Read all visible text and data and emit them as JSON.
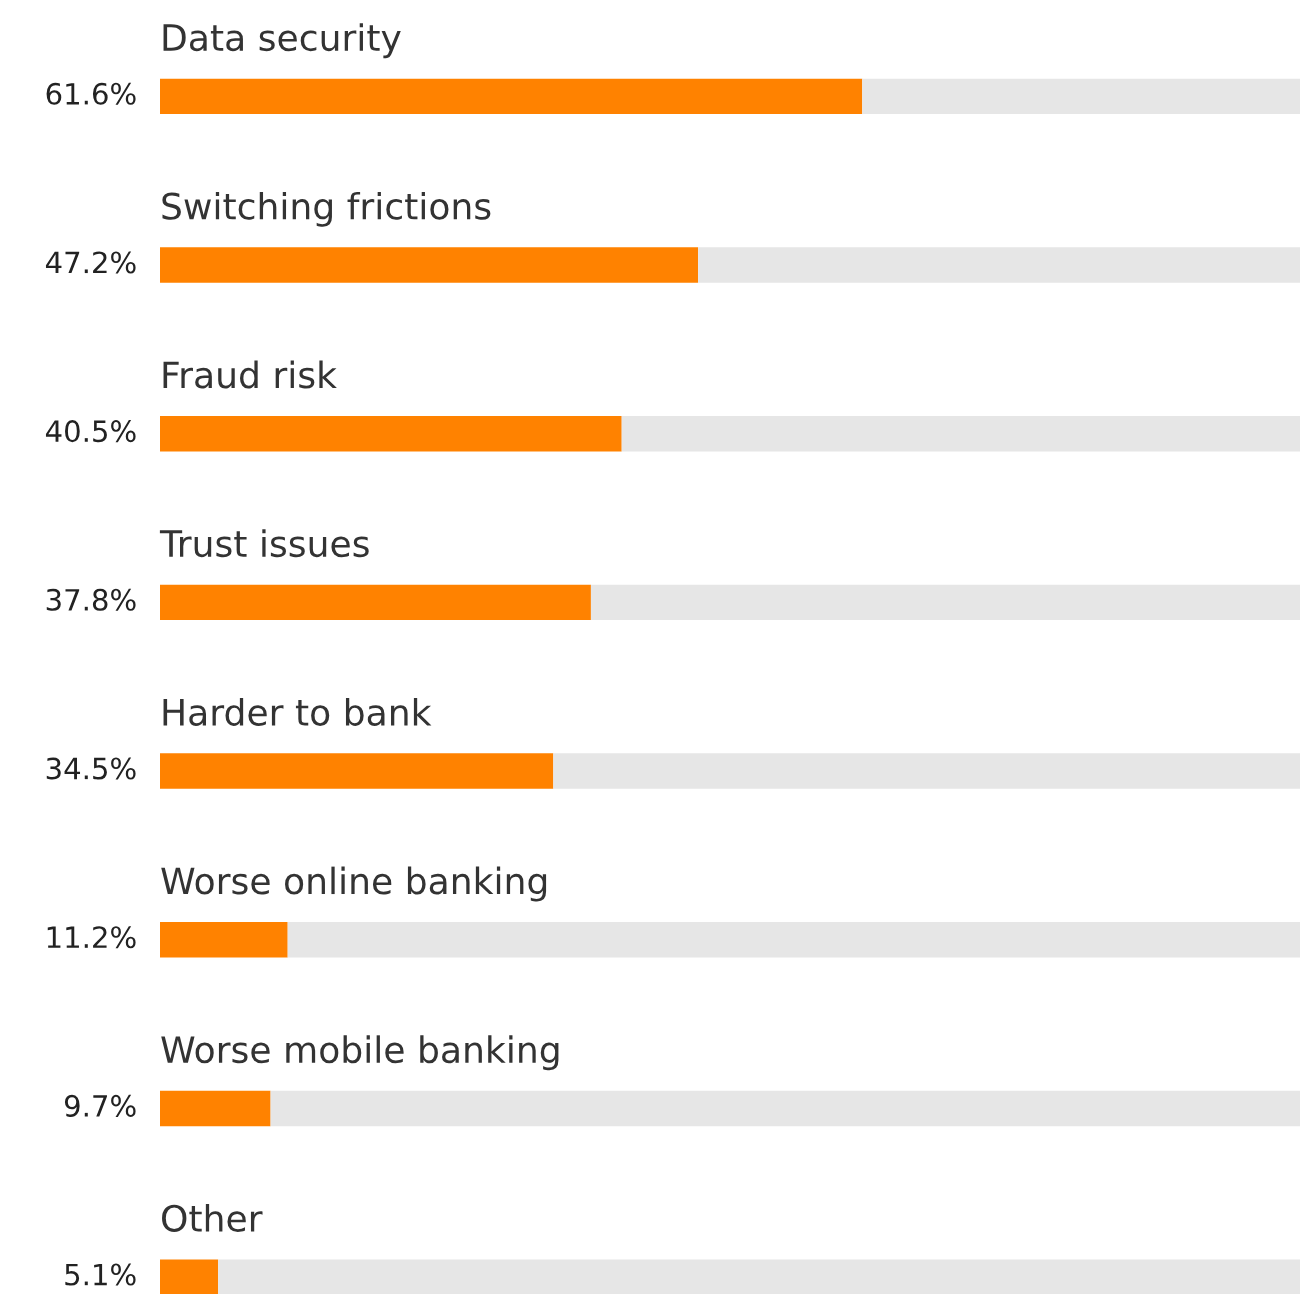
{
  "chart_data": {
    "type": "bar",
    "orientation": "horizontal",
    "stacked": true,
    "categories": [
      "Data security",
      "Switching frictions",
      "Fraud risk",
      "Trust issues",
      "Harder to bank",
      "Worse online banking",
      "Worse mobile banking",
      "Other"
    ],
    "series": [
      {
        "color": "#ff8200",
        "values": [
          61.6,
          47.2,
          40.5,
          37.8,
          34.5,
          11.2,
          9.7,
          5.1
        ],
        "value_labels": [
          "61.6%",
          "47.2%",
          "40.5%",
          "37.8%",
          "34.5%",
          "11.2%",
          "9.7%",
          "5.1%"
        ]
      },
      {
        "color": "#e6e6e6",
        "values": [
          38.4,
          52.8,
          59.5,
          62.2,
          65.5,
          88.8,
          90.3,
          94.9
        ]
      }
    ],
    "xlim": [
      0,
      100
    ]
  }
}
